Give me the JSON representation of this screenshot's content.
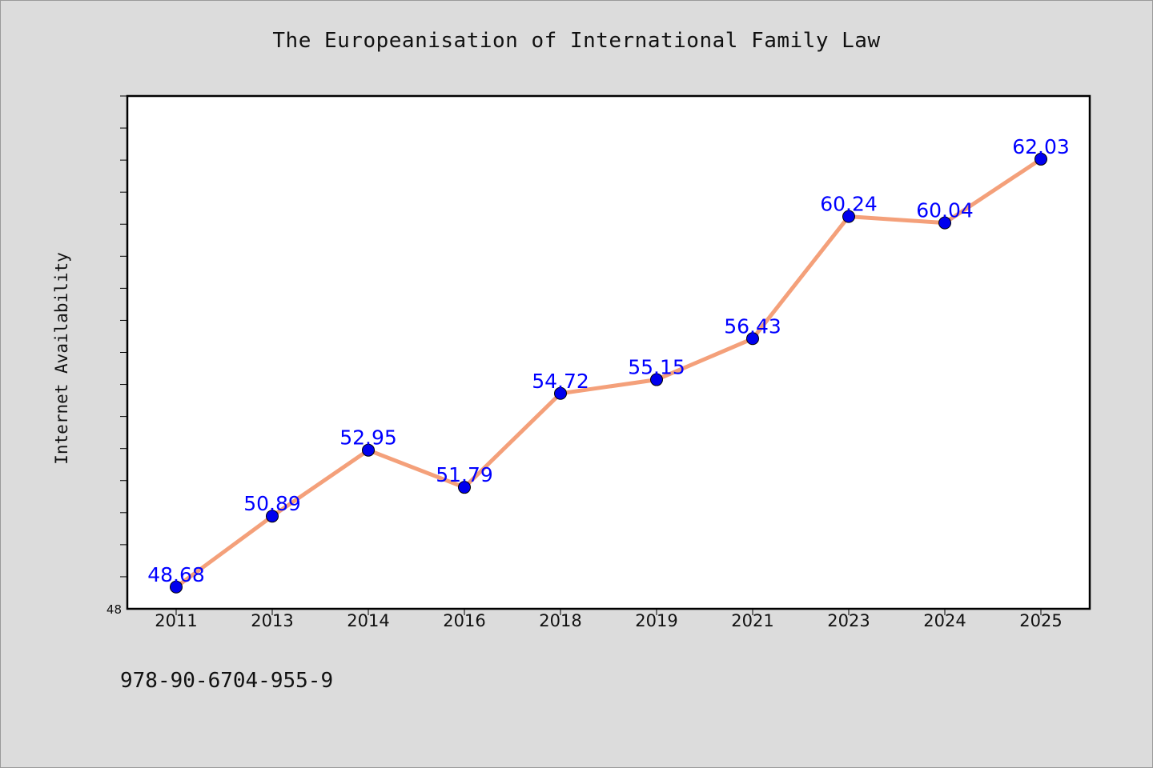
{
  "chart_data": {
    "type": "line",
    "title": "The Europeanisation of International Family Law",
    "xlabel": "",
    "ylabel": "Internet Availability",
    "categories": [
      "2011",
      "2013",
      "2014",
      "2016",
      "2018",
      "2019",
      "2021",
      "2023",
      "2024",
      "2025"
    ],
    "series": [
      {
        "values": [
          48.68,
          50.89,
          52.95,
          51.79,
          54.72,
          55.15,
          56.43,
          60.24,
          60.04,
          62.03
        ]
      }
    ],
    "ylim": [
      48,
      64
    ],
    "y_tick_labels": [
      "48"
    ],
    "grid": false,
    "legend": "none",
    "line_color": "#f4a07a",
    "marker_color": "#0000ee",
    "label_color": "#0000ff"
  },
  "footer": {
    "isbn": "978-90-6704-955-9"
  }
}
